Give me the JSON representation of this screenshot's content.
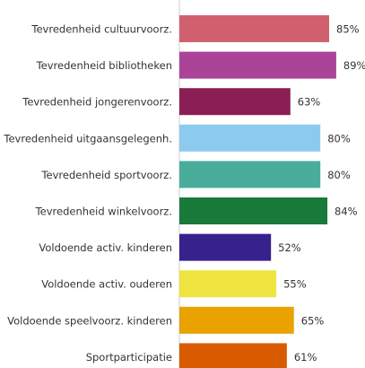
{
  "chart_data": {
    "type": "bar",
    "orientation": "horizontal",
    "categories": [
      "Tevredenheid cultuurvoorz.",
      "Tevredenheid bibliotheken",
      "Tevredenheid jongerenvoorz.",
      "Tevredenheid uitgaansgelegenh.",
      "Tevredenheid sportvoorz.",
      "Tevredenheid winkelvoorz.",
      "Voldoende activ. kinderen",
      "Voldoende activ. ouderen",
      "Voldoende speelvoorz. kinderen",
      "Sportparticipatie"
    ],
    "values": [
      85,
      89,
      63,
      80,
      80,
      84,
      52,
      55,
      65,
      61
    ],
    "value_labels": [
      "85%",
      "89%",
      "63%",
      "80%",
      "80%",
      "84%",
      "52%",
      "55%",
      "65%",
      "61%"
    ],
    "colors": [
      "#d1606e",
      "#ab4399",
      "#8b1f55",
      "#8ccbed",
      "#4aad9b",
      "#187a3b",
      "#35228c",
      "#efe440",
      "#e9a200",
      "#d95b00"
    ],
    "xlim": [
      0,
      100
    ]
  }
}
